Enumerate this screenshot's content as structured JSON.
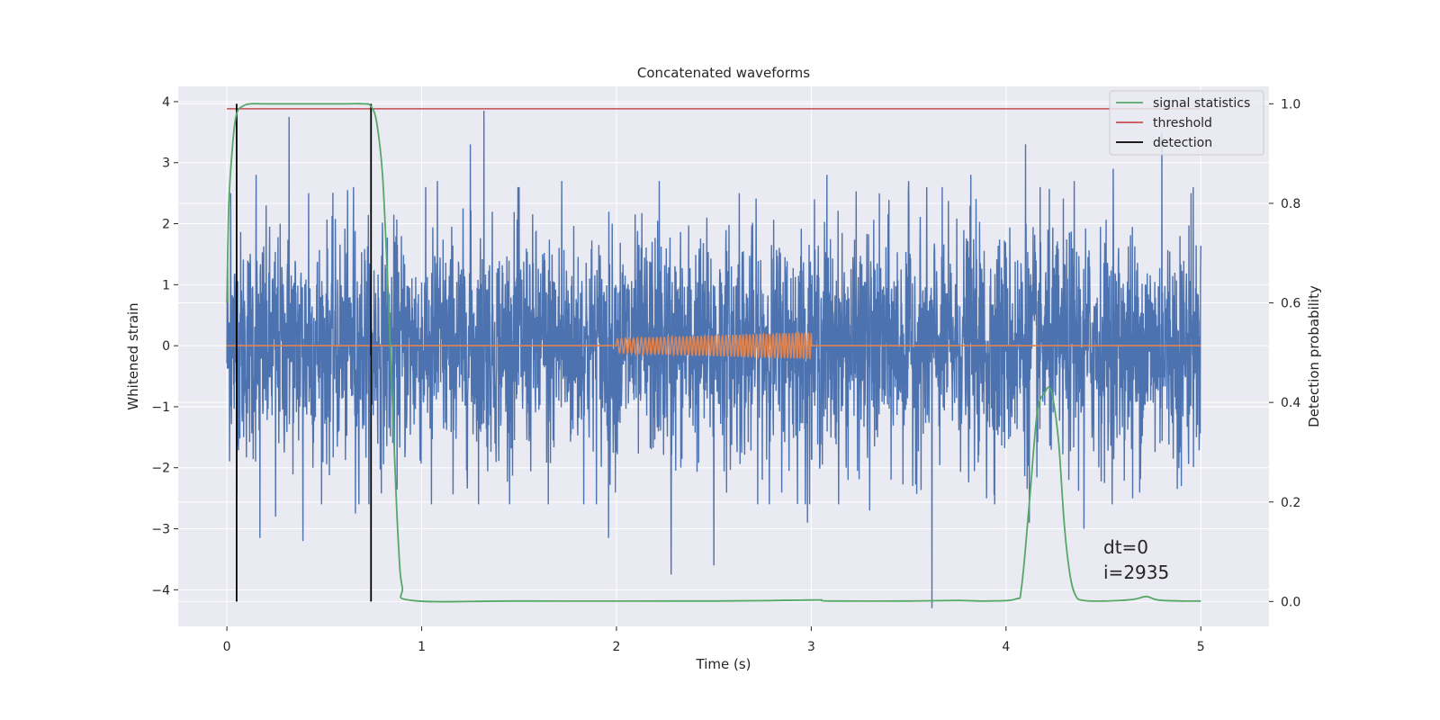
{
  "chart_data": {
    "type": "line",
    "title": "Concatenated waveforms",
    "xlabel": "Time (s)",
    "ylabel": "Whitened strain",
    "ylabel_right": "Detection probability",
    "xlim": [
      -0.25,
      5.35
    ],
    "ylim": [
      -4.6,
      4.25
    ],
    "ylim_right": [
      -0.05,
      1.035
    ],
    "xticks": [
      0,
      1,
      2,
      3,
      4,
      5
    ],
    "xtick_labels": [
      "0",
      "1",
      "2",
      "3",
      "4",
      "5"
    ],
    "yticks": [
      -4,
      -3,
      -2,
      -1,
      0,
      1,
      2,
      3,
      4
    ],
    "ytick_labels": [
      "−4",
      "−3",
      "−2",
      "−1",
      "0",
      "1",
      "2",
      "3",
      "4"
    ],
    "yticks_right": [
      0.0,
      0.2,
      0.4,
      0.6,
      0.8,
      1.0
    ],
    "ytick_labels_right": [
      "0.0",
      "0.2",
      "0.4",
      "0.6",
      "0.8",
      "1.0"
    ],
    "grid": true,
    "legend_position": "top-right",
    "legend": [
      {
        "label": "signal statistics",
        "color": "#55a868"
      },
      {
        "label": "threshold",
        "color": "#c44e52"
      },
      {
        "label": "detection",
        "color": "#000000"
      }
    ],
    "colors": {
      "strain": "#4c72b0",
      "waveform": "#dd8452",
      "signal_statistics": "#55a868",
      "threshold": "#c44e52",
      "detection": "#000000",
      "plot_bg": "#eaeaf2",
      "grid": "#ffffff"
    },
    "strain_series": {
      "x_range": [
        0,
        5
      ],
      "typical_amplitude": 1.0,
      "peaks_positive": [
        {
          "x": 0.02,
          "y": 2.5
        },
        {
          "x": 0.15,
          "y": 2.8
        },
        {
          "x": 0.32,
          "y": 3.75
        },
        {
          "x": 0.42,
          "y": 2.5
        },
        {
          "x": 0.65,
          "y": 2.6
        },
        {
          "x": 1.08,
          "y": 2.7
        },
        {
          "x": 1.25,
          "y": 3.3
        },
        {
          "x": 1.32,
          "y": 3.85
        },
        {
          "x": 1.5,
          "y": 2.6
        },
        {
          "x": 1.72,
          "y": 2.7
        },
        {
          "x": 2.22,
          "y": 2.7
        },
        {
          "x": 2.63,
          "y": 2.5
        },
        {
          "x": 3.08,
          "y": 2.8
        },
        {
          "x": 3.5,
          "y": 2.7
        },
        {
          "x": 3.82,
          "y": 2.8
        },
        {
          "x": 4.1,
          "y": 3.3
        },
        {
          "x": 4.35,
          "y": 2.7
        },
        {
          "x": 4.55,
          "y": 2.9
        },
        {
          "x": 4.8,
          "y": 3.5
        },
        {
          "x": 4.95,
          "y": 2.5
        }
      ],
      "peaks_negative": [
        {
          "x": 0.17,
          "y": -3.15
        },
        {
          "x": 0.25,
          "y": -2.8
        },
        {
          "x": 0.39,
          "y": -3.2
        },
        {
          "x": 0.66,
          "y": -2.75
        },
        {
          "x": 1.05,
          "y": -2.6
        },
        {
          "x": 1.65,
          "y": -2.6
        },
        {
          "x": 1.96,
          "y": -3.15
        },
        {
          "x": 2.28,
          "y": -3.75
        },
        {
          "x": 2.5,
          "y": -3.6
        },
        {
          "x": 2.98,
          "y": -2.9
        },
        {
          "x": 3.3,
          "y": -2.7
        },
        {
          "x": 3.62,
          "y": -4.3
        },
        {
          "x": 3.9,
          "y": -2.5
        },
        {
          "x": 4.12,
          "y": -2.9
        },
        {
          "x": 4.4,
          "y": -3.0
        },
        {
          "x": 4.65,
          "y": -2.5
        },
        {
          "x": 4.9,
          "y": -2.3
        }
      ]
    },
    "waveform_series": {
      "baseline": 0,
      "chirp_start": 2.0,
      "chirp_end": 3.0,
      "amplitude_start": 0.12,
      "amplitude_end": 0.22,
      "cycles": 48
    },
    "signal_statistics": {
      "x": [
        0.0,
        0.01,
        0.03,
        0.05,
        0.08,
        0.12,
        0.2,
        0.4,
        0.6,
        0.7,
        0.74,
        0.77,
        0.8,
        0.83,
        0.86,
        0.88,
        0.9,
        0.95,
        1.5,
        2.5,
        3.0,
        3.05,
        3.1,
        3.5,
        3.75,
        3.9,
        4.05,
        4.08,
        4.12,
        4.16,
        4.2,
        4.22,
        4.24,
        4.27,
        4.3,
        4.33,
        4.36,
        4.4,
        4.5,
        4.65,
        4.72,
        4.78,
        4.9,
        5.0
      ],
      "y": [
        0.6,
        0.8,
        0.92,
        0.98,
        0.995,
        1.0,
        1.0,
        1.0,
        1.0,
        1.0,
        0.995,
        0.96,
        0.85,
        0.6,
        0.3,
        0.12,
        0.03,
        0.002,
        0.001,
        0.001,
        0.003,
        0.003,
        0.001,
        0.001,
        0.002,
        0.001,
        0.005,
        0.03,
        0.2,
        0.38,
        0.42,
        0.43,
        0.41,
        0.32,
        0.15,
        0.05,
        0.01,
        0.002,
        0.001,
        0.004,
        0.01,
        0.003,
        0.001,
        0.001
      ]
    },
    "threshold": {
      "value": 0.99,
      "x": [
        0.0,
        5.0
      ]
    },
    "detections": [
      0.05,
      0.74
    ],
    "annotations": [
      "dt=0",
      "i=2935"
    ]
  }
}
